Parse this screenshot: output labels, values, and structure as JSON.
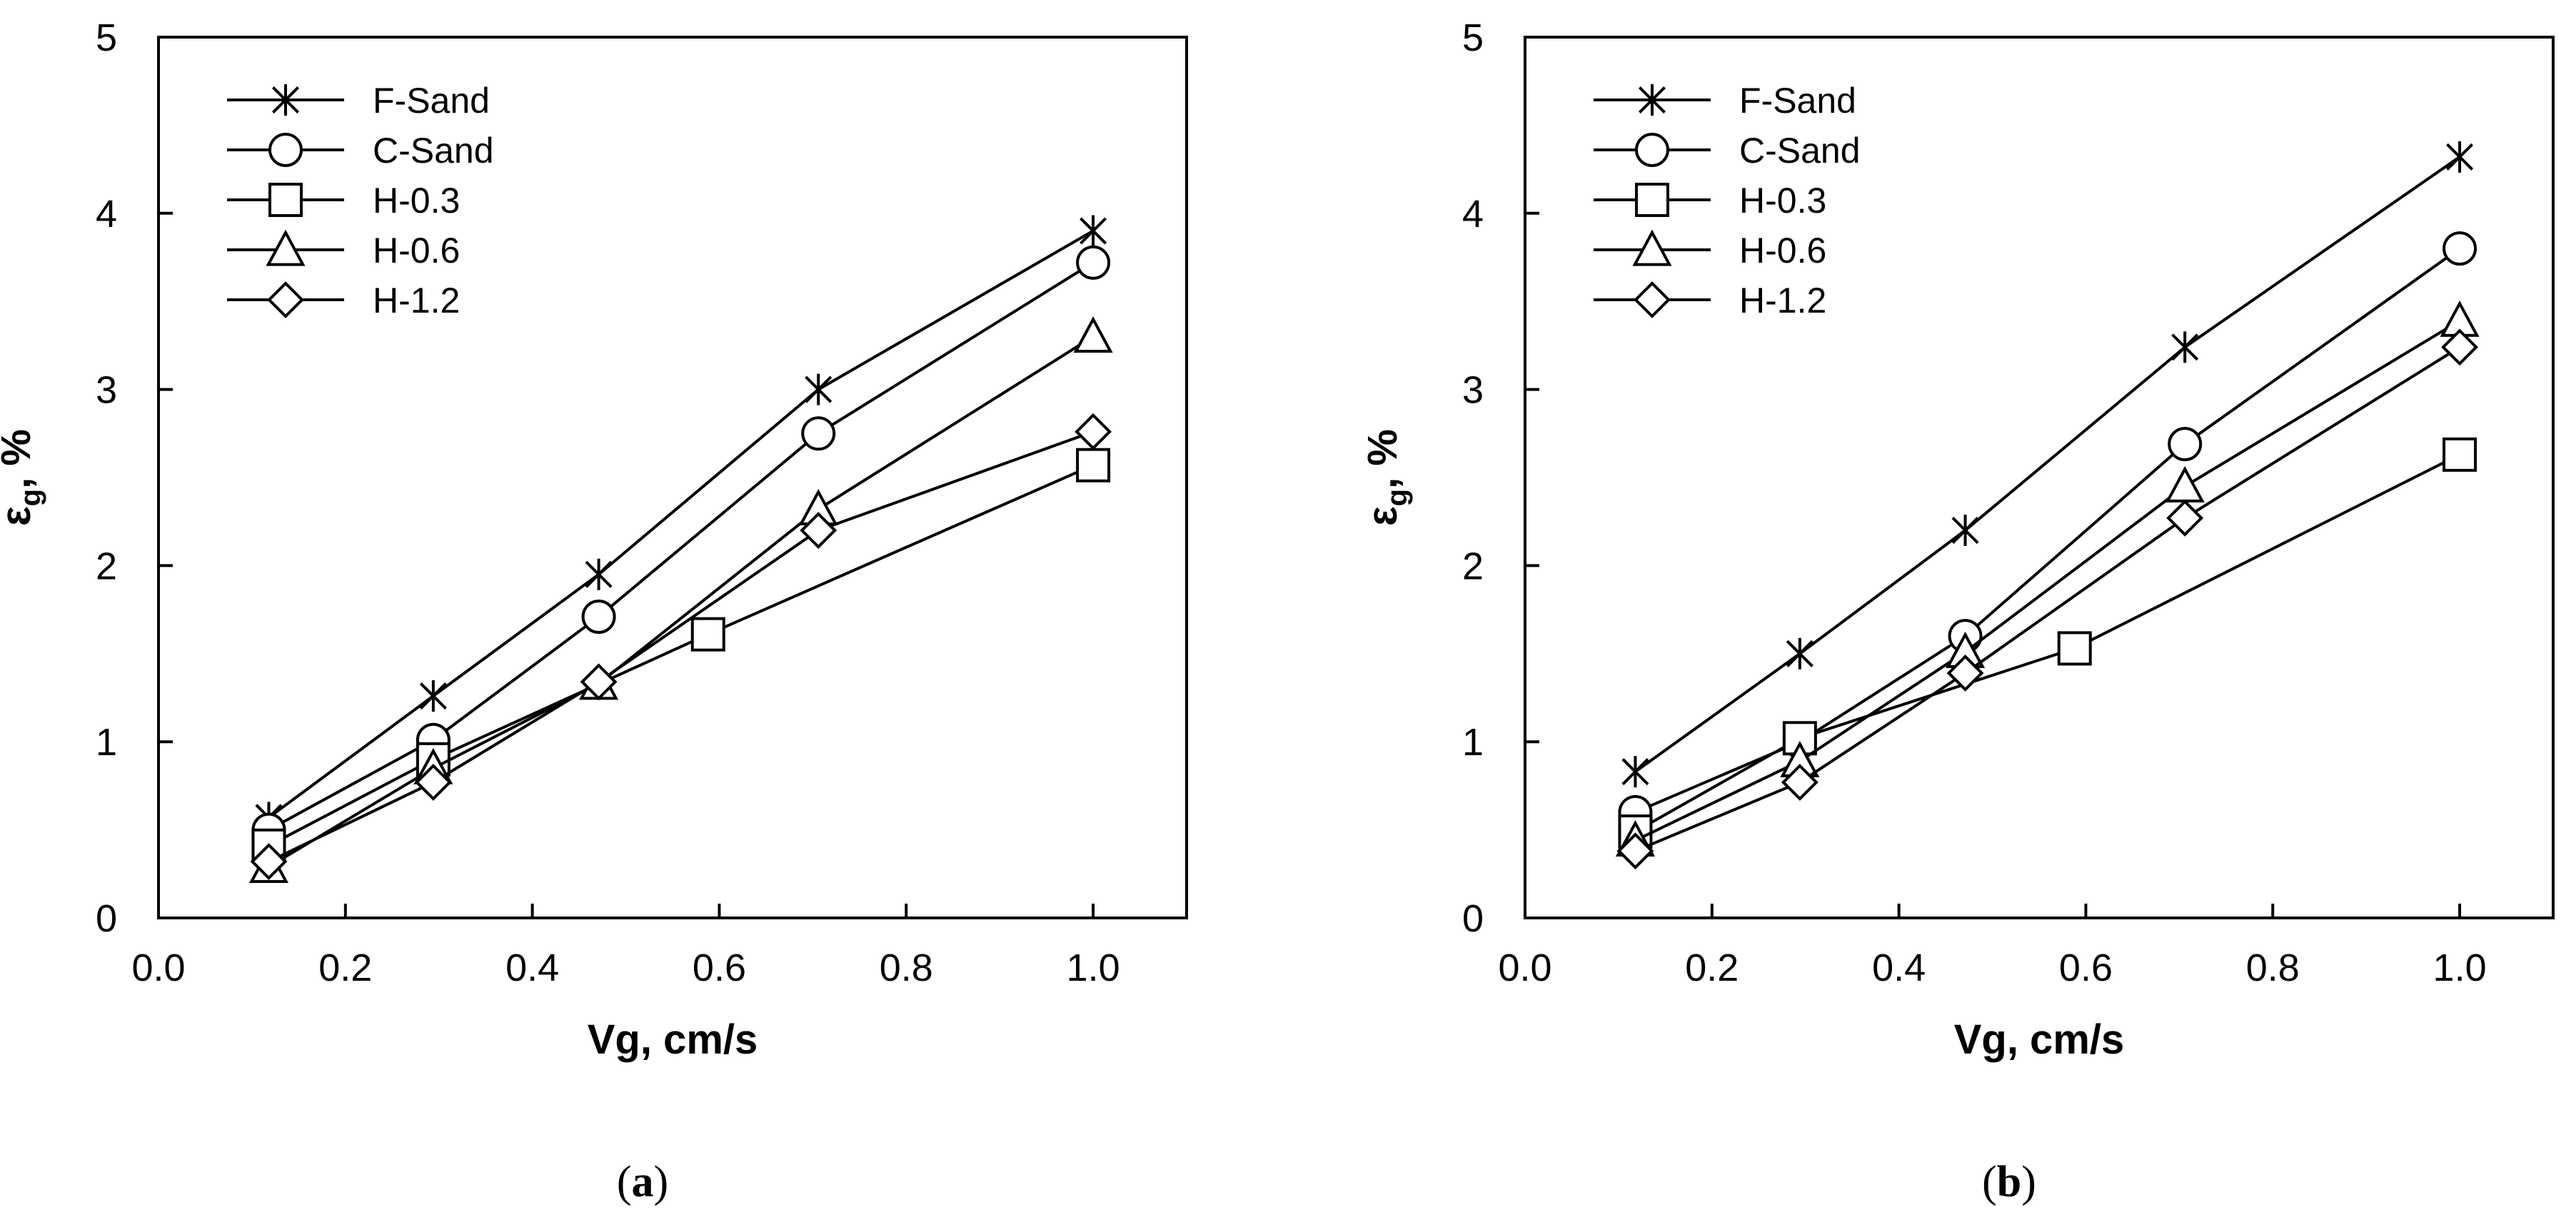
{
  "chart_data": [
    {
      "type": "line",
      "caption_open": "(",
      "caption_letter": "a",
      "caption_close": ")",
      "xlabel": "Vg, cm/s",
      "ylabel_main": "ε",
      "ylabel_sub": "g",
      "ylabel_rest": ", %",
      "xlim": [
        0.0,
        1.1
      ],
      "ylim": [
        0,
        5
      ],
      "xticks": [
        "0.0",
        "0.2",
        "0.4",
        "0.6",
        "0.8",
        "1.0"
      ],
      "yticks": [
        "0",
        "1",
        "2",
        "3",
        "4",
        "5"
      ],
      "series": [
        {
          "name": "F-Sand",
          "marker": "asterisk",
          "x": [
            0.118,
            0.294,
            0.471,
            0.706,
            1.0
          ],
          "y": [
            0.57,
            1.26,
            1.95,
            3.0,
            3.9
          ]
        },
        {
          "name": "C-Sand",
          "marker": "circle",
          "x": [
            0.118,
            0.294,
            0.471,
            0.706,
            1.0
          ],
          "y": [
            0.5,
            1.01,
            1.71,
            2.75,
            3.72
          ]
        },
        {
          "name": "H-0.3",
          "marker": "square",
          "x": [
            0.118,
            0.294,
            0.588,
            1.0
          ],
          "y": [
            0.41,
            0.9,
            1.61,
            2.57
          ]
        },
        {
          "name": "H-0.6",
          "marker": "triangle",
          "x": [
            0.118,
            0.294,
            0.471,
            0.706,
            1.0
          ],
          "y": [
            0.29,
            0.85,
            1.33,
            2.32,
            3.3
          ]
        },
        {
          "name": "H-1.2",
          "marker": "diamond",
          "x": [
            0.118,
            0.294,
            0.471,
            0.706,
            1.0
          ],
          "y": [
            0.32,
            0.77,
            1.34,
            2.2,
            2.76
          ]
        }
      ]
    },
    {
      "type": "line",
      "caption_open": "(",
      "caption_letter": "b",
      "caption_close": ")",
      "xlabel": "Vg, cm/s",
      "ylabel_main": "ε",
      "ylabel_sub": "g",
      "ylabel_rest": ", %",
      "xlim": [
        0.0,
        1.1
      ],
      "ylim": [
        0,
        5
      ],
      "xticks": [
        "0.0",
        "0.2",
        "0.4",
        "0.6",
        "0.8",
        "1.0"
      ],
      "yticks": [
        "0",
        "1",
        "2",
        "3",
        "4",
        "5"
      ],
      "series": [
        {
          "name": "F-Sand",
          "marker": "asterisk",
          "x": [
            0.118,
            0.294,
            0.471,
            0.706,
            1.0
          ],
          "y": [
            0.83,
            1.5,
            2.2,
            3.24,
            4.32
          ]
        },
        {
          "name": "C-Sand",
          "marker": "circle",
          "x": [
            0.118,
            0.294,
            0.471,
            0.706,
            1.0
          ],
          "y": [
            0.6,
            1.0,
            1.6,
            2.69,
            3.8
          ]
        },
        {
          "name": "H-0.3",
          "marker": "square",
          "x": [
            0.118,
            0.294,
            0.588,
            1.0
          ],
          "y": [
            0.49,
            1.02,
            1.53,
            2.63
          ]
        },
        {
          "name": "H-0.6",
          "marker": "triangle",
          "x": [
            0.118,
            0.294,
            0.471,
            0.706,
            1.0
          ],
          "y": [
            0.44,
            0.89,
            1.51,
            2.45,
            3.39
          ]
        },
        {
          "name": "H-1.2",
          "marker": "diamond",
          "x": [
            0.118,
            0.294,
            0.471,
            0.706,
            1.0
          ],
          "y": [
            0.38,
            0.77,
            1.39,
            2.27,
            3.24
          ]
        }
      ]
    }
  ]
}
